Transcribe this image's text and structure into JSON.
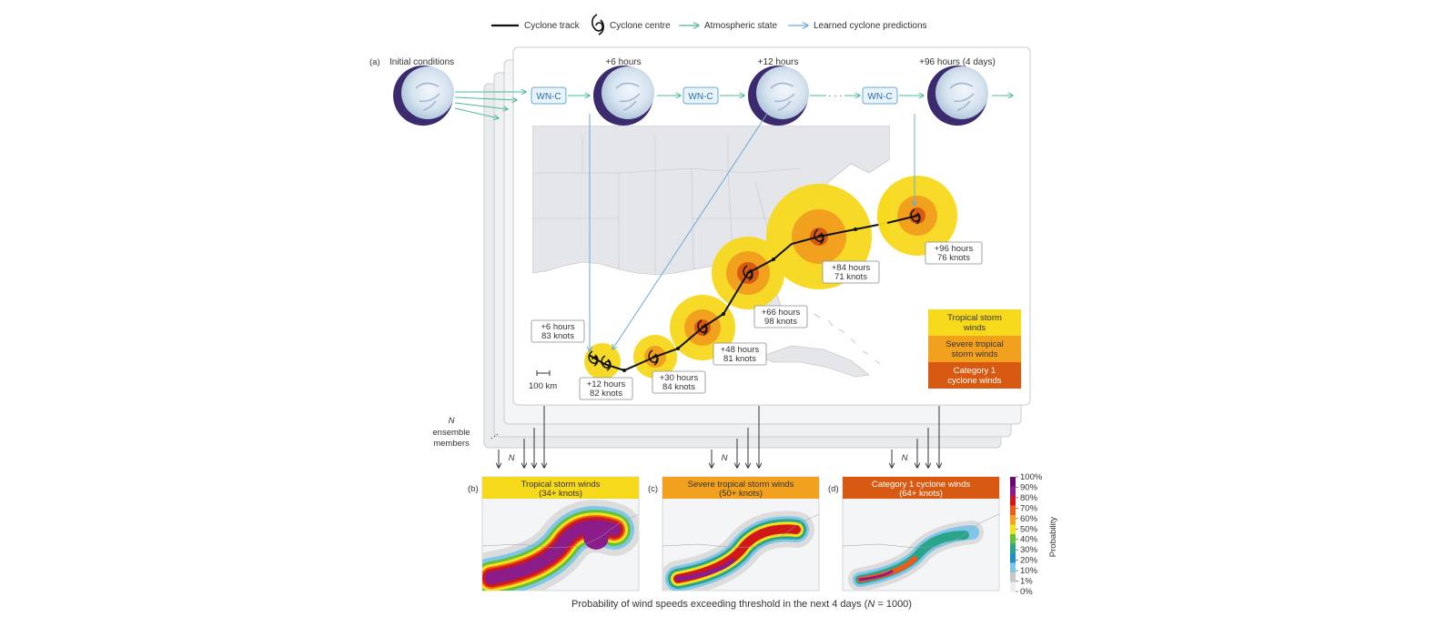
{
  "legend": {
    "items": [
      {
        "name": "track",
        "label": "Cyclone track",
        "color": "#111111"
      },
      {
        "name": "centre",
        "label": "Cyclone centre",
        "color": "#111111"
      },
      {
        "name": "atmos",
        "label": "Atmospheric state",
        "color": "#4cb89a"
      },
      {
        "name": "learned",
        "label": "Learned cyclone predictions",
        "color": "#6aaad8"
      }
    ]
  },
  "panel_a": {
    "tag": "(a)",
    "initial_label": "Initial conditions",
    "model_label": "WN-C",
    "steps": [
      "+6 hours",
      "+12 hours",
      "+96 hours (4 days)"
    ],
    "ellipsis": "· · ·",
    "scale_label": "100 km",
    "ensemble_n": "N",
    "ensemble_text_1": "ensemble",
    "ensemble_text_2": "members",
    "track_labels": [
      {
        "l1": "+6 hours",
        "l2": "83 knots"
      },
      {
        "l1": "+12 hours",
        "l2": "82 knots"
      },
      {
        "l1": "+30 hours",
        "l2": "84 knots"
      },
      {
        "l1": "+48 hours",
        "l2": "81 knots"
      },
      {
        "l1": "+66 hours",
        "l2": "98 knots"
      },
      {
        "l1": "+84 hours",
        "l2": "71 knots"
      },
      {
        "l1": "+96 hours",
        "l2": "76 knots"
      }
    ],
    "wind_key": [
      {
        "l1": "Tropical storm",
        "l2": "winds",
        "color": "#f7d91c",
        "text": "#333333"
      },
      {
        "l1": "Severe tropical",
        "l2": "storm winds",
        "color": "#f2a11e",
        "text": "#333333"
      },
      {
        "l1": "Category 1",
        "l2": "cyclone winds",
        "color": "#d85a12",
        "text": "#ffffff"
      }
    ]
  },
  "panels_bcd": [
    {
      "tag": "(b)",
      "title_1": "Tropical storm winds",
      "title_2": "(34+ knots)",
      "color": "#f7d91c",
      "text": "#333333"
    },
    {
      "tag": "(c)",
      "title_1": "Severe tropical storm winds",
      "title_2": "(50+ knots)",
      "color": "#f2a11e",
      "text": "#333333"
    },
    {
      "tag": "(d)",
      "title_1": "Category 1 cyclone winds",
      "title_2": "(64+ knots)",
      "color": "#d85a12",
      "text": "#ffffff"
    }
  ],
  "colorbar": {
    "label": "Probability",
    "ticks": [
      "100%",
      "90%",
      "80%",
      "70%",
      "60%",
      "50%",
      "40%",
      "30%",
      "20%",
      "10%",
      "1%",
      "0%"
    ],
    "colors": [
      "#6a0a6e",
      "#8c1c8a",
      "#d01818",
      "#f05a18",
      "#f7a21e",
      "#f2e21a",
      "#62c13a",
      "#2aa58c",
      "#1f8fc8",
      "#7fc6e8",
      "#c8c8c8",
      "#ededed"
    ]
  },
  "caption": {
    "before": "Probability of wind speeds exceeding threshold in the next 4 days (",
    "italic": "N",
    "after": " = 1000)"
  },
  "N_mark": "N"
}
